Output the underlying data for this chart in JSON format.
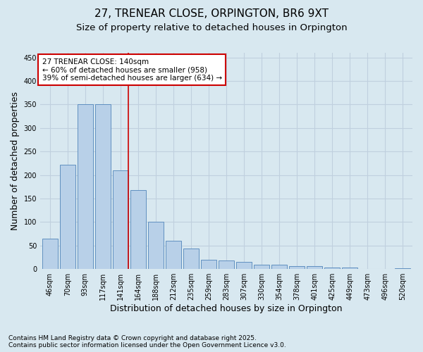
{
  "title1": "27, TRENEAR CLOSE, ORPINGTON, BR6 9XT",
  "title2": "Size of property relative to detached houses in Orpington",
  "xlabel": "Distribution of detached houses by size in Orpington",
  "ylabel": "Number of detached properties",
  "categories": [
    "46sqm",
    "70sqm",
    "93sqm",
    "117sqm",
    "141sqm",
    "164sqm",
    "188sqm",
    "212sqm",
    "235sqm",
    "259sqm",
    "283sqm",
    "307sqm",
    "330sqm",
    "354sqm",
    "378sqm",
    "401sqm",
    "425sqm",
    "449sqm",
    "473sqm",
    "496sqm",
    "520sqm"
  ],
  "values": [
    65,
    222,
    350,
    350,
    210,
    168,
    100,
    60,
    43,
    20,
    19,
    15,
    9,
    9,
    7,
    7,
    4,
    4,
    0,
    0,
    2
  ],
  "bar_color": "#b8d0e8",
  "bar_edge_color": "#6090c0",
  "grid_color": "#c0d0de",
  "background_color": "#d8e8f0",
  "vline_color": "#cc0000",
  "annotation_text": "27 TRENEAR CLOSE: 140sqm\n← 60% of detached houses are smaller (958)\n39% of semi-detached houses are larger (634) →",
  "annotation_box_color": "#ffffff",
  "annotation_box_edge": "#cc0000",
  "ylim": [
    0,
    460
  ],
  "yticks": [
    0,
    50,
    100,
    150,
    200,
    250,
    300,
    350,
    400,
    450
  ],
  "footer1": "Contains HM Land Registry data © Crown copyright and database right 2025.",
  "footer2": "Contains public sector information licensed under the Open Government Licence v3.0.",
  "title1_fontsize": 11,
  "title2_fontsize": 9.5,
  "tick_fontsize": 7,
  "label_fontsize": 9,
  "annotation_fontsize": 7.5,
  "footer_fontsize": 6.5
}
